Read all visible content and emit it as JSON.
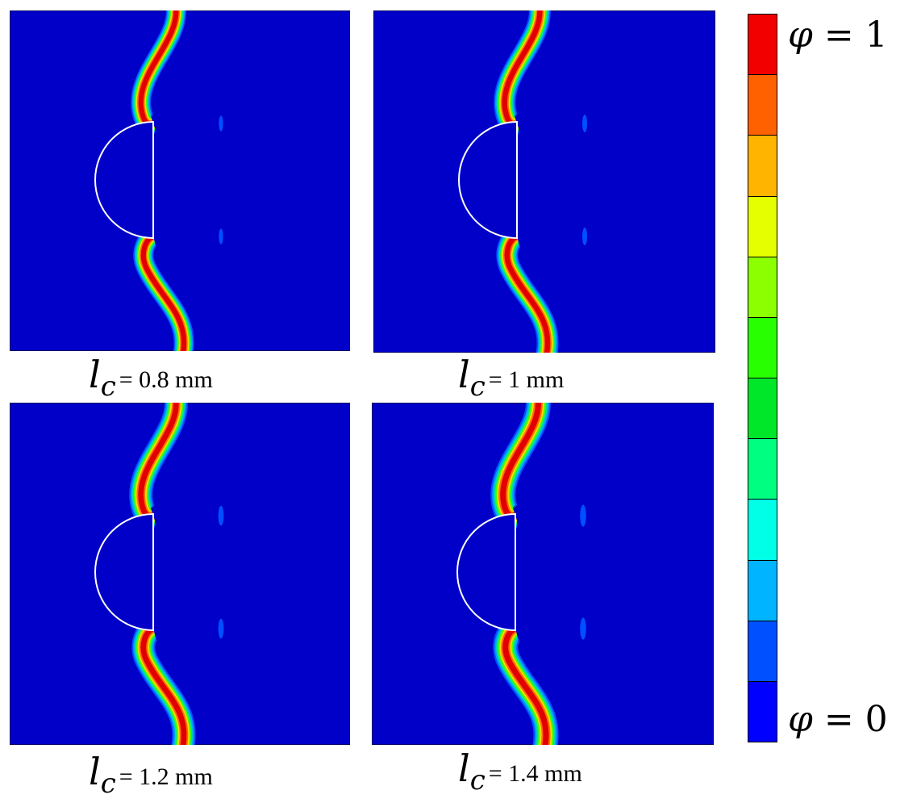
{
  "colors": {
    "background_field": "#0000c8",
    "hole": "#ffffff",
    "crack_core": "#e00000",
    "crack_layers": [
      "#ff6a00",
      "#ffd800",
      "#40ff00",
      "#00e0a0",
      "#00a0ff",
      "#0050ff"
    ]
  },
  "panels": [
    {
      "label_symbol": "l",
      "label_sub": "c",
      "label_text": "= 0.8 mm",
      "length_scale_mm": 0.8
    },
    {
      "label_symbol": "l",
      "label_sub": "c",
      "label_text": "= 1 mm",
      "length_scale_mm": 1
    },
    {
      "label_symbol": "l",
      "label_sub": "c",
      "label_text": "= 1.2 mm",
      "length_scale_mm": 1.2
    },
    {
      "label_symbol": "l",
      "label_sub": "c",
      "label_text": "= 1.4 mm",
      "length_scale_mm": 1.4
    }
  ],
  "colorbar": {
    "top_label_symbol": "φ",
    "top_label_value": "= 1",
    "bottom_label_symbol": "φ",
    "bottom_label_value": "= 0",
    "segments": [
      "#f20000",
      "#ff6000",
      "#ffb400",
      "#e6ff00",
      "#8cff00",
      "#28ff00",
      "#00e628",
      "#00ff80",
      "#00ffe6",
      "#00b4ff",
      "#0050ff",
      "#0000ff"
    ]
  }
}
